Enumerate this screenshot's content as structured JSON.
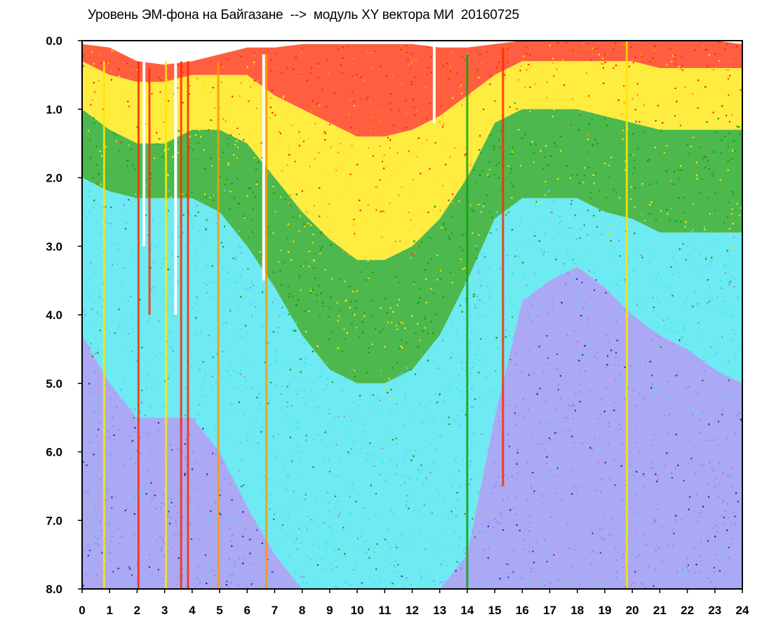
{
  "chart_data": {
    "type": "heatmap",
    "title": "Уровень ЭМ-фона на Байгазане  -->  модуль XY вектора МИ  20160725",
    "xlabel": "",
    "ylabel": "",
    "xlim": [
      0,
      24
    ],
    "ylim": [
      8.0,
      0.0
    ],
    "y_inverted": true,
    "x_ticks": [
      "0",
      "1",
      "2",
      "3",
      "4",
      "5",
      "6",
      "7",
      "8",
      "9",
      "10",
      "11",
      "12",
      "13",
      "14",
      "15",
      "16",
      "17",
      "18",
      "19",
      "20",
      "21",
      "22",
      "23",
      "24"
    ],
    "y_ticks": [
      "0.0",
      "1.0",
      "2.0",
      "3.0",
      "4.0",
      "5.0",
      "6.0",
      "7.0",
      "8.0"
    ],
    "color_levels": [
      {
        "name": "red",
        "color": "#ff2a00"
      },
      {
        "name": "orange",
        "color": "#ff9900"
      },
      {
        "name": "yellow",
        "color": "#ffe600"
      },
      {
        "name": "green",
        "color": "#12a012"
      },
      {
        "name": "cyan",
        "color": "#3ee3ee"
      },
      {
        "name": "violet",
        "color": "#8f8cf0"
      },
      {
        "name": "blue",
        "color": "#2a2ad8"
      }
    ],
    "upper_boundary": {
      "hours": [
        0,
        1,
        2,
        3,
        4,
        5,
        6,
        7,
        8,
        9,
        10,
        11,
        12,
        13,
        14,
        15,
        16,
        17,
        18,
        19,
        20,
        21,
        22,
        23,
        24
      ],
      "values": [
        0.05,
        0.1,
        0.3,
        0.35,
        0.3,
        0.2,
        0.1,
        0.1,
        0.05,
        0.05,
        0.05,
        0.05,
        0.05,
        0.1,
        0.1,
        0.05,
        0.0,
        0.0,
        0.0,
        0.0,
        0.0,
        0.0,
        0.0,
        0.0,
        0.05
      ]
    },
    "red_to_yellow_boundary": {
      "hours": [
        0,
        1,
        2,
        3,
        4,
        5,
        6,
        7,
        8,
        9,
        10,
        11,
        12,
        13,
        14,
        15,
        16,
        17,
        18,
        19,
        20,
        21,
        22,
        23,
        24
      ],
      "values": [
        0.3,
        0.5,
        0.6,
        0.6,
        0.5,
        0.5,
        0.5,
        0.8,
        1.0,
        1.2,
        1.4,
        1.4,
        1.3,
        1.1,
        0.8,
        0.5,
        0.3,
        0.3,
        0.3,
        0.3,
        0.3,
        0.4,
        0.4,
        0.4,
        0.4
      ]
    },
    "yellow_to_green_boundary": {
      "hours": [
        0,
        1,
        2,
        3,
        4,
        5,
        6,
        7,
        8,
        9,
        10,
        11,
        12,
        13,
        14,
        15,
        16,
        17,
        18,
        19,
        20,
        21,
        22,
        23,
        24
      ],
      "values": [
        1.0,
        1.3,
        1.5,
        1.5,
        1.3,
        1.3,
        1.5,
        2.0,
        2.5,
        2.9,
        3.2,
        3.2,
        3.0,
        2.6,
        2.0,
        1.2,
        1.0,
        1.0,
        1.0,
        1.1,
        1.2,
        1.3,
        1.3,
        1.3,
        1.3
      ]
    },
    "green_to_cyan_boundary": {
      "hours": [
        0,
        1,
        2,
        3,
        4,
        5,
        6,
        7,
        8,
        9,
        10,
        11,
        12,
        13,
        14,
        15,
        16,
        17,
        18,
        19,
        20,
        21,
        22,
        23,
        24
      ],
      "values": [
        2.0,
        2.2,
        2.3,
        2.3,
        2.3,
        2.5,
        3.0,
        3.6,
        4.3,
        4.8,
        5.0,
        5.0,
        4.8,
        4.3,
        3.5,
        2.6,
        2.3,
        2.3,
        2.3,
        2.5,
        2.6,
        2.8,
        2.8,
        2.8,
        2.8
      ]
    },
    "cyan_to_violet_boundary": {
      "hours": [
        0,
        1,
        2,
        3,
        4,
        5,
        6,
        7,
        8,
        9,
        10,
        11,
        12,
        13,
        14,
        15,
        16,
        17,
        18,
        19,
        20,
        21,
        22,
        23,
        24
      ],
      "values": [
        4.3,
        5.0,
        5.5,
        5.5,
        5.5,
        6.0,
        6.8,
        7.5,
        8.0,
        8.0,
        8.0,
        8.0,
        8.0,
        8.0,
        7.5,
        5.5,
        3.8,
        3.5,
        3.3,
        3.6,
        4.0,
        4.3,
        4.5,
        4.8,
        5.0
      ]
    },
    "vertical_streaks": [
      {
        "hour": 0.8,
        "from": 0.3,
        "to": 8.0,
        "color": "yellow"
      },
      {
        "hour": 2.05,
        "from": 0.3,
        "to": 8.0,
        "color": "red"
      },
      {
        "hour": 2.45,
        "from": 0.4,
        "to": 4.0,
        "color": "red"
      },
      {
        "hour": 3.05,
        "from": 0.3,
        "to": 8.0,
        "color": "yellow"
      },
      {
        "hour": 3.6,
        "from": 0.3,
        "to": 8.0,
        "color": "red"
      },
      {
        "hour": 3.85,
        "from": 0.3,
        "to": 8.0,
        "color": "red"
      },
      {
        "hour": 4.95,
        "from": 0.3,
        "to": 8.0,
        "color": "orange"
      },
      {
        "hour": 6.7,
        "from": 0.2,
        "to": 8.0,
        "color": "orange"
      },
      {
        "hour": 14.0,
        "from": 0.2,
        "to": 8.0,
        "color": "green"
      },
      {
        "hour": 15.3,
        "from": 0.1,
        "to": 6.5,
        "color": "red"
      },
      {
        "hour": 19.8,
        "from": 0.0,
        "to": 8.0,
        "color": "yellow"
      }
    ],
    "gaps": [
      {
        "hour": 2.25,
        "from": 0.2,
        "to": 3.0
      },
      {
        "hour": 3.4,
        "from": 0.2,
        "to": 4.0
      },
      {
        "hour": 6.6,
        "from": 0.2,
        "to": 3.5
      },
      {
        "hour": 12.8,
        "from": 0.0,
        "to": 1.2
      }
    ]
  }
}
